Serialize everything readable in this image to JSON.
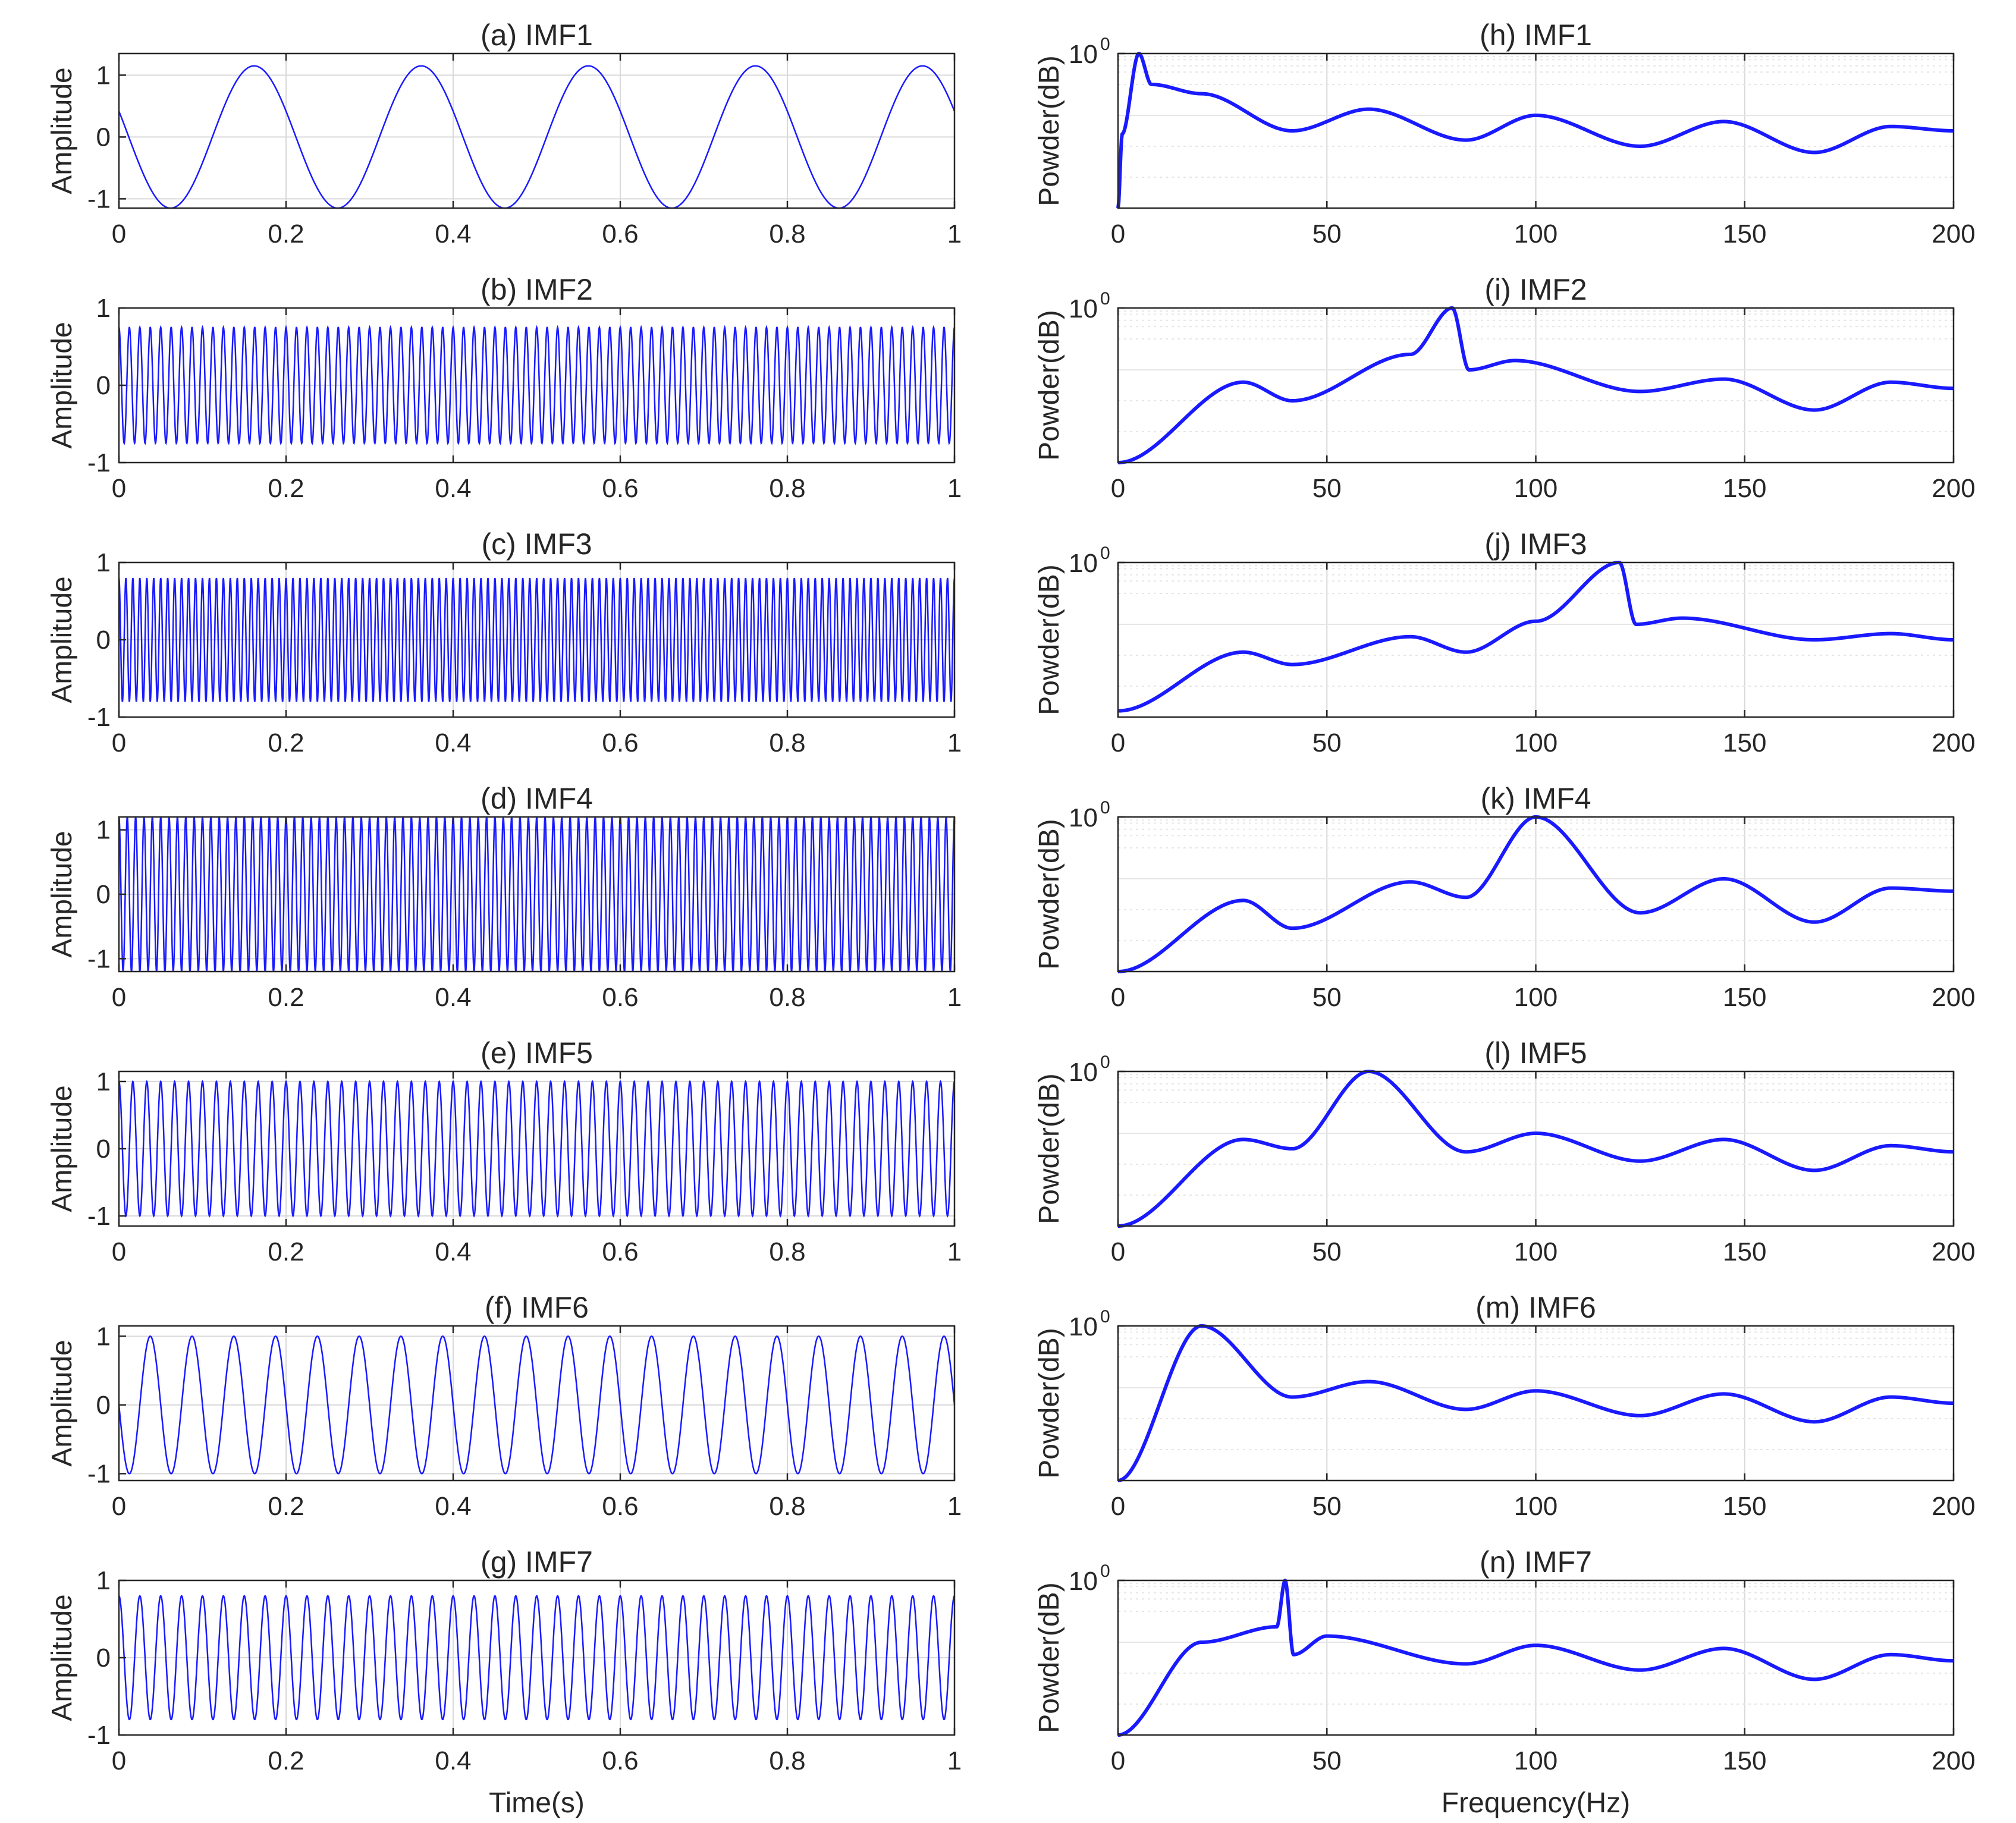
{
  "colors": {
    "line": "#1a1aff",
    "axis": "#262626",
    "grid": "#d9d9d9",
    "minor_grid": "#e6e6e6"
  },
  "chart_data": [
    {
      "type": "line",
      "title": "(a) IMF1",
      "xlabel": "",
      "ylabel": "Amplitude",
      "xlim": [
        0,
        1
      ],
      "ylim": [
        -1.15,
        1.35
      ],
      "xticks": [
        "0",
        "0.2",
        "0.4",
        "0.6",
        "0.8",
        "1"
      ],
      "yticks": [
        "1",
        "0",
        "-1"
      ],
      "grid": true,
      "series": [
        {
          "name": "IMF1",
          "signal": {
            "freq_hz": 5,
            "amplitude": 1.15,
            "phase": 1.2
          }
        }
      ]
    },
    {
      "type": "line",
      "title": "(b) IMF2",
      "xlabel": "",
      "ylabel": "Amplitude",
      "xlim": [
        0,
        1
      ],
      "ylim": [
        -1,
        1
      ],
      "xticks": [
        "0",
        "0.2",
        "0.4",
        "0.6",
        "0.8",
        "1"
      ],
      "yticks": [
        "1",
        "0",
        "-1"
      ],
      "grid": true,
      "series": [
        {
          "name": "IMF2",
          "signal": {
            "freq_hz": 80,
            "amplitude": 0.75,
            "phase": 0
          }
        }
      ]
    },
    {
      "type": "line",
      "title": "(c) IMF3",
      "xlabel": "",
      "ylabel": "Amplitude",
      "xlim": [
        0,
        1
      ],
      "ylim": [
        -1,
        1
      ],
      "xticks": [
        "0",
        "0.2",
        "0.4",
        "0.6",
        "0.8",
        "1"
      ],
      "yticks": [
        "1",
        "0",
        "-1"
      ],
      "grid": true,
      "series": [
        {
          "name": "IMF3",
          "signal": {
            "freq_hz": 120,
            "amplitude": 0.8,
            "phase": 0
          }
        }
      ]
    },
    {
      "type": "line",
      "title": "(d) IMF4",
      "xlabel": "",
      "ylabel": "Amplitude",
      "xlim": [
        0,
        1
      ],
      "ylim": [
        -1.2,
        1.2
      ],
      "xticks": [
        "0",
        "0.2",
        "0.4",
        "0.6",
        "0.8",
        "1"
      ],
      "yticks": [
        "1",
        "0",
        "-1"
      ],
      "grid": true,
      "series": [
        {
          "name": "IMF4",
          "signal": {
            "freq_hz": 100,
            "amplitude": 1.2,
            "phase": 0
          }
        }
      ]
    },
    {
      "type": "line",
      "title": "(e) IMF5",
      "xlabel": "",
      "ylabel": "Amplitude",
      "xlim": [
        0,
        1
      ],
      "ylim": [
        -1.15,
        1.15
      ],
      "xticks": [
        "0",
        "0.2",
        "0.4",
        "0.6",
        "0.8",
        "1"
      ],
      "yticks": [
        "1",
        "0",
        "-1"
      ],
      "grid": true,
      "series": [
        {
          "name": "IMF5",
          "signal": {
            "freq_hz": 60,
            "amplitude": 1.0,
            "phase": 0
          }
        }
      ]
    },
    {
      "type": "line",
      "title": "(f) IMF6",
      "xlabel": "",
      "ylabel": "Amplitude",
      "xlim": [
        0,
        1
      ],
      "ylim": [
        -1.1,
        1.15
      ],
      "xticks": [
        "0",
        "0.2",
        "0.4",
        "0.6",
        "0.8",
        "1"
      ],
      "yticks": [
        "1",
        "0",
        "-1"
      ],
      "grid": true,
      "series": [
        {
          "name": "IMF6",
          "signal": {
            "freq_hz": 20,
            "amplitude": 1.0,
            "phase": 1.57
          }
        }
      ]
    },
    {
      "type": "line",
      "title": "(g) IMF7",
      "xlabel": "Time(s)",
      "ylabel": "Amplitude",
      "xlim": [
        0,
        1
      ],
      "ylim": [
        -1,
        1
      ],
      "xticks": [
        "0",
        "0.2",
        "0.4",
        "0.6",
        "0.8",
        "1"
      ],
      "yticks": [
        "1",
        "0",
        "-1"
      ],
      "grid": true,
      "series": [
        {
          "name": "IMF7",
          "signal": {
            "freq_hz": 40,
            "amplitude": 0.8,
            "phase": 0
          }
        }
      ]
    },
    {
      "type": "line",
      "title": "(h) IMF1",
      "xlabel": "",
      "ylabel": "Powder(dB)",
      "xlim": [
        0,
        200
      ],
      "ylim_log_decades": [
        -2.5,
        0
      ],
      "xticks": [
        "0",
        "50",
        "100",
        "150",
        "200"
      ],
      "ytick_label": "10",
      "ytick_exp": "0",
      "grid": true,
      "series": [
        {
          "name": "IMF1 spectrum",
          "peak_hz": 5,
          "peak_height": 0,
          "notches_hz": [
            41.7,
            83.3,
            125,
            166.7
          ],
          "envelope": [
            [
              0,
              -2.5
            ],
            [
              1,
              -1.3
            ],
            [
              5,
              0
            ],
            [
              8,
              -0.5
            ],
            [
              20,
              -0.65
            ],
            [
              41.7,
              -1.25
            ],
            [
              60,
              -0.9
            ],
            [
              83.3,
              -1.4
            ],
            [
              100,
              -1.0
            ],
            [
              125,
              -1.5
            ],
            [
              145,
              -1.1
            ],
            [
              166.7,
              -1.6
            ],
            [
              185,
              -1.18
            ],
            [
              200,
              -1.25
            ]
          ]
        }
      ]
    },
    {
      "type": "line",
      "title": "(i) IMF2",
      "xlabel": "",
      "ylabel": "Powder(dB)",
      "xlim": [
        0,
        200
      ],
      "ylim_log_decades": [
        -2.5,
        0
      ],
      "xticks": [
        "0",
        "50",
        "100",
        "150",
        "200"
      ],
      "ytick_label": "10",
      "ytick_exp": "0",
      "grid": true,
      "series": [
        {
          "name": "IMF2 spectrum",
          "peak_hz": 80,
          "peak_height": 0,
          "notches_hz": [
            41.7,
            125,
            166.7
          ],
          "envelope": [
            [
              0,
              -2.5
            ],
            [
              30,
              -1.2
            ],
            [
              41.7,
              -1.5
            ],
            [
              70,
              -0.75
            ],
            [
              80,
              0
            ],
            [
              84,
              -1.0
            ],
            [
              95,
              -0.85
            ],
            [
              125,
              -1.35
            ],
            [
              145,
              -1.15
            ],
            [
              166.7,
              -1.65
            ],
            [
              185,
              -1.2
            ],
            [
              200,
              -1.3
            ]
          ]
        }
      ]
    },
    {
      "type": "line",
      "title": "(j) IMF3",
      "xlabel": "",
      "ylabel": "Powder(dB)",
      "xlim": [
        0,
        200
      ],
      "ylim_log_decades": [
        -2.5,
        0
      ],
      "xticks": [
        "0",
        "50",
        "100",
        "150",
        "200"
      ],
      "ytick_label": "10",
      "ytick_exp": "0",
      "grid": true,
      "series": [
        {
          "name": "IMF3 spectrum",
          "peak_hz": 120,
          "peak_height": 0,
          "notches_hz": [
            41.7,
            83.3
          ],
          "envelope": [
            [
              0,
              -2.4
            ],
            [
              30,
              -1.45
            ],
            [
              41.7,
              -1.65
            ],
            [
              70,
              -1.2
            ],
            [
              83.3,
              -1.45
            ],
            [
              100,
              -0.95
            ],
            [
              120,
              0
            ],
            [
              124,
              -1.0
            ],
            [
              135,
              -0.9
            ],
            [
              166.7,
              -1.25
            ],
            [
              185,
              -1.15
            ],
            [
              200,
              -1.25
            ]
          ]
        }
      ]
    },
    {
      "type": "line",
      "title": "(k) IMF4",
      "xlabel": "",
      "ylabel": "Powder(dB)",
      "xlim": [
        0,
        200
      ],
      "ylim_log_decades": [
        -2.5,
        0
      ],
      "xticks": [
        "0",
        "50",
        "100",
        "150",
        "200"
      ],
      "ytick_label": "10",
      "ytick_exp": "0",
      "grid": true,
      "series": [
        {
          "name": "IMF4 spectrum",
          "peak_hz": 100,
          "peak_height": 0,
          "notches_hz": [
            41.7,
            83.3,
            125,
            166.7
          ],
          "envelope": [
            [
              0,
              -2.5
            ],
            [
              30,
              -1.35
            ],
            [
              41.7,
              -1.8
            ],
            [
              70,
              -1.05
            ],
            [
              83.3,
              -1.3
            ],
            [
              100,
              0
            ],
            [
              125,
              -1.55
            ],
            [
              145,
              -1.0
            ],
            [
              166.7,
              -1.7
            ],
            [
              185,
              -1.15
            ],
            [
              200,
              -1.2
            ]
          ]
        }
      ]
    },
    {
      "type": "line",
      "title": "(l) IMF5",
      "xlabel": "",
      "ylabel": "Powder(dB)",
      "xlim": [
        0,
        200
      ],
      "ylim_log_decades": [
        -2.5,
        0
      ],
      "xticks": [
        "0",
        "50",
        "100",
        "150",
        "200"
      ],
      "ytick_label": "10",
      "ytick_exp": "0",
      "grid": true,
      "series": [
        {
          "name": "IMF5 spectrum",
          "peak_hz": 60,
          "peak_height": 0,
          "notches_hz": [
            41.7,
            83.3,
            125,
            166.7
          ],
          "envelope": [
            [
              0,
              -2.5
            ],
            [
              30,
              -1.1
            ],
            [
              41.7,
              -1.25
            ],
            [
              60,
              0
            ],
            [
              83.3,
              -1.3
            ],
            [
              100,
              -1.0
            ],
            [
              125,
              -1.45
            ],
            [
              145,
              -1.1
            ],
            [
              166.7,
              -1.6
            ],
            [
              185,
              -1.2
            ],
            [
              200,
              -1.3
            ]
          ]
        }
      ]
    },
    {
      "type": "line",
      "title": "(m) IMF6",
      "xlabel": "",
      "ylabel": "Powder(dB)",
      "xlim": [
        0,
        200
      ],
      "ylim_log_decades": [
        -2.5,
        0
      ],
      "xticks": [
        "0",
        "50",
        "100",
        "150",
        "200"
      ],
      "ytick_label": "10",
      "ytick_exp": "0",
      "grid": true,
      "series": [
        {
          "name": "IMF6 spectrum",
          "peak_hz": 20,
          "peak_height": 0,
          "notches_hz": [
            41.7,
            83.3,
            125,
            166.7
          ],
          "envelope": [
            [
              0,
              -2.5
            ],
            [
              20,
              0
            ],
            [
              41.7,
              -1.15
            ],
            [
              60,
              -0.9
            ],
            [
              83.3,
              -1.35
            ],
            [
              100,
              -1.05
            ],
            [
              125,
              -1.45
            ],
            [
              145,
              -1.1
            ],
            [
              166.7,
              -1.55
            ],
            [
              185,
              -1.15
            ],
            [
              200,
              -1.25
            ]
          ]
        }
      ]
    },
    {
      "type": "line",
      "title": "(n) IMF7",
      "xlabel": "Frequency(Hz)",
      "ylabel": "Powder(dB)",
      "xlim": [
        0,
        200
      ],
      "ylim_log_decades": [
        -2.5,
        0
      ],
      "xticks": [
        "0",
        "50",
        "100",
        "150",
        "200"
      ],
      "ytick_label": "10",
      "ytick_exp": "0",
      "grid": true,
      "series": [
        {
          "name": "IMF7 spectrum",
          "peak_hz": 40,
          "peak_height": 0,
          "notches_hz": [
            83.3,
            125,
            166.7
          ],
          "envelope": [
            [
              0,
              -2.5
            ],
            [
              20,
              -1.0
            ],
            [
              38,
              -0.75
            ],
            [
              40,
              0
            ],
            [
              42,
              -1.2
            ],
            [
              50,
              -0.9
            ],
            [
              83.3,
              -1.35
            ],
            [
              100,
              -1.05
            ],
            [
              125,
              -1.45
            ],
            [
              145,
              -1.1
            ],
            [
              166.7,
              -1.6
            ],
            [
              185,
              -1.2
            ],
            [
              200,
              -1.3
            ]
          ]
        }
      ]
    }
  ]
}
